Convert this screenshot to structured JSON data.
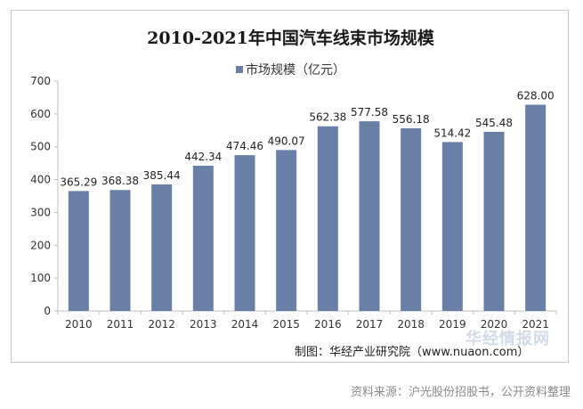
{
  "chart_data": {
    "type": "bar",
    "title": "2010-2021年中国汽车线束市场规模",
    "categories": [
      "2010",
      "2011",
      "2012",
      "2013",
      "2014",
      "2015",
      "2016",
      "2017",
      "2018",
      "2019",
      "2020",
      "2021"
    ],
    "series": [
      {
        "name": "市场规模（亿元）",
        "values": [
          365.29,
          368.38,
          385.44,
          442.34,
          474.46,
          490.07,
          562.38,
          577.58,
          556.18,
          514.42,
          545.48,
          628.0
        ],
        "labels": [
          "365.29",
          "368.38",
          "385.44",
          "442.34",
          "474.46",
          "490.07",
          "562.38",
          "577.58",
          "556.18",
          "514.42",
          "545.48",
          "628.00"
        ]
      }
    ],
    "yticks": [
      "0",
      "100",
      "200",
      "300",
      "400",
      "500",
      "600",
      "700"
    ],
    "ylim": [
      0,
      700
    ],
    "xlabel": "",
    "ylabel": "",
    "legend_position": "top",
    "grid": false,
    "bar_color": "#6a7fa6"
  },
  "footer": {
    "maker": "制图：华经产业研究院（www.nuaon.com）",
    "watermark": "华经情报网",
    "source": "资料来源：沪光股份招股书，公开资料整理"
  }
}
